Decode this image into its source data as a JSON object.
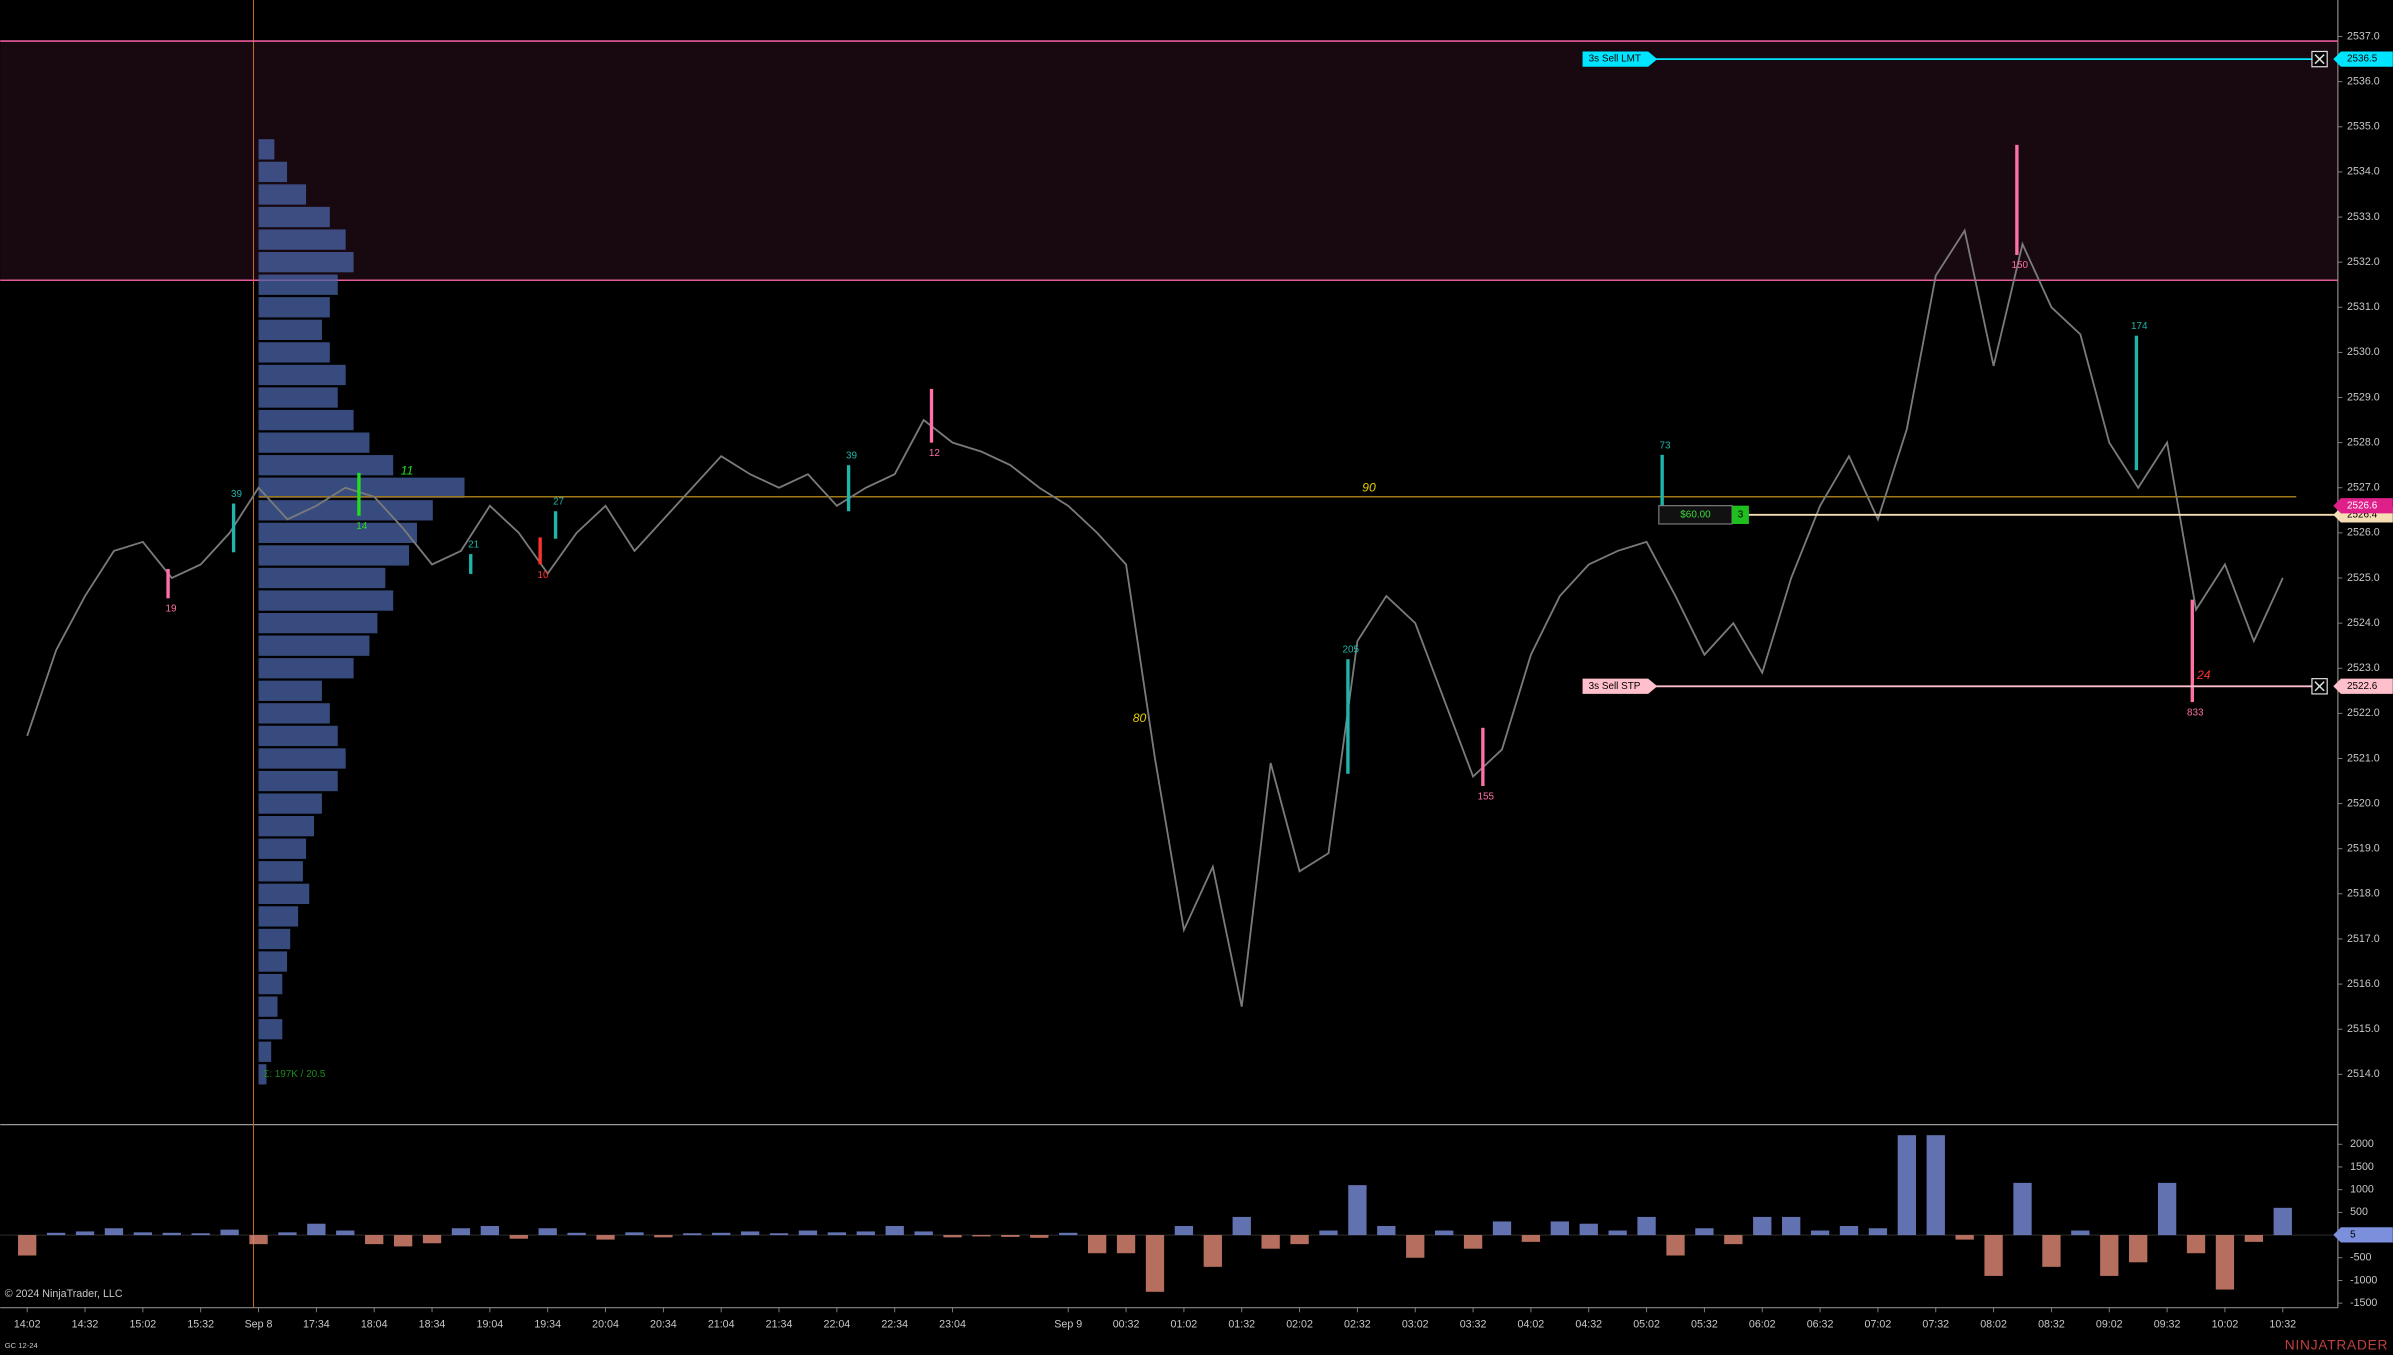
{
  "chart_data": [
    {
      "type": "line",
      "x": [
        0,
        15,
        30,
        45,
        60,
        75,
        90,
        105,
        120,
        135,
        150,
        165,
        180,
        195,
        210,
        225,
        240,
        255,
        270,
        285,
        300,
        315,
        330,
        345,
        360,
        375,
        390,
        405,
        420,
        435,
        450,
        465,
        480,
        495,
        510,
        525,
        540,
        555,
        570,
        585,
        600,
        615,
        630,
        645,
        660,
        675,
        690,
        705,
        720,
        735,
        750,
        765,
        780,
        795,
        810,
        825,
        840,
        855,
        870,
        885,
        900,
        915,
        930,
        945,
        960,
        975,
        990,
        1005,
        1020,
        1035,
        1050,
        1065,
        1080,
        1095,
        1110,
        1125,
        1140,
        1155,
        1170
      ],
      "values": [
        2521.5,
        2523.4,
        2524.6,
        2525.6,
        2525.8,
        2525.0,
        2525.3,
        2526.0,
        2527.0,
        2526.3,
        2526.6,
        2527.0,
        2526.8,
        2526.1,
        2525.3,
        2525.6,
        2526.6,
        2526.0,
        2525.1,
        2526.0,
        2526.6,
        2525.6,
        2526.3,
        2527.0,
        2527.7,
        2527.3,
        2527.0,
        2527.3,
        2526.6,
        2527.0,
        2527.3,
        2528.5,
        2528.0,
        2527.8,
        2527.5,
        2527.0,
        2526.6,
        2526.0,
        2525.3,
        2521.0,
        2517.2,
        2518.6,
        2515.5,
        2520.9,
        2518.5,
        2518.9,
        2523.6,
        2524.6,
        2524.0,
        2522.3,
        2520.6,
        2521.2,
        2523.3,
        2524.6,
        2525.3,
        2525.6,
        2525.8,
        2524.6,
        2523.3,
        2524.0,
        2522.9,
        2525.0,
        2526.6,
        2527.7,
        2526.3,
        2528.3,
        2531.7,
        2532.7,
        2529.7,
        2532.4,
        2531.0,
        2530.4,
        2528.0,
        2527.0,
        2528.0,
        2524.3,
        2525.3,
        2523.6,
        2525.0
      ],
      "color": "#7a7a7a",
      "xlim": [
        -14,
        1197
      ],
      "xticks": [
        {
          "value": 0,
          "label": "14:02"
        },
        {
          "value": 30,
          "label": "14:32"
        },
        {
          "value": 60,
          "label": "15:02"
        },
        {
          "value": 90,
          "label": "15:32"
        },
        {
          "value": 120,
          "label": "Sep 8"
        },
        {
          "value": 150,
          "label": "17:34"
        },
        {
          "value": 180,
          "label": "18:04"
        },
        {
          "value": 210,
          "label": "18:34"
        },
        {
          "value": 240,
          "label": "19:04"
        },
        {
          "value": 270,
          "label": "19:34"
        },
        {
          "value": 300,
          "label": "20:04"
        },
        {
          "value": 330,
          "label": "20:34"
        },
        {
          "value": 360,
          "label": "21:04"
        },
        {
          "value": 390,
          "label": "21:34"
        },
        {
          "value": 420,
          "label": "22:04"
        },
        {
          "value": 450,
          "label": "22:34"
        },
        {
          "value": 480,
          "label": "23:04"
        },
        {
          "value": 540,
          "label": "Sep 9"
        },
        {
          "value": 570,
          "label": "00:32"
        },
        {
          "value": 600,
          "label": "01:02"
        },
        {
          "value": 630,
          "label": "01:32"
        },
        {
          "value": 660,
          "label": "02:02"
        },
        {
          "value": 690,
          "label": "02:32"
        },
        {
          "value": 720,
          "label": "03:02"
        },
        {
          "value": 750,
          "label": "03:32"
        },
        {
          "value": 780,
          "label": "04:02"
        },
        {
          "value": 810,
          "label": "04:32"
        },
        {
          "value": 840,
          "label": "05:02"
        },
        {
          "value": 870,
          "label": "05:32"
        },
        {
          "value": 900,
          "label": "06:02"
        },
        {
          "value": 930,
          "label": "06:32"
        },
        {
          "value": 960,
          "label": "07:02"
        },
        {
          "value": 990,
          "label": "07:32"
        },
        {
          "value": 1020,
          "label": "08:02"
        },
        {
          "value": 1050,
          "label": "08:32"
        },
        {
          "value": 1080,
          "label": "09:02"
        },
        {
          "value": 1110,
          "label": "09:32"
        },
        {
          "value": 1140,
          "label": "10:02"
        },
        {
          "value": 1170,
          "label": "10:32"
        }
      ],
      "ylim": [
        2512.92,
        2537.81
      ],
      "yticks": [
        {
          "value": 2514,
          "label": "2514.0"
        },
        {
          "value": 2515,
          "label": "2515.0"
        },
        {
          "value": 2516,
          "label": "2516.0"
        },
        {
          "value": 2517,
          "label": "2517.0"
        },
        {
          "value": 2518,
          "label": "2518.0"
        },
        {
          "value": 2519,
          "label": "2519.0"
        },
        {
          "value": 2520,
          "label": "2520.0"
        },
        {
          "value": 2521,
          "label": "2521.0"
        },
        {
          "value": 2522,
          "label": "2522.0"
        },
        {
          "value": 2523,
          "label": "2523.0"
        },
        {
          "value": 2524,
          "label": "2524.0"
        },
        {
          "value": 2525,
          "label": "2525.0"
        },
        {
          "value": 2526,
          "label": "2526.0"
        },
        {
          "value": 2527,
          "label": "2527.0"
        },
        {
          "value": 2528,
          "label": "2528.0"
        },
        {
          "value": 2529,
          "label": "2529.0"
        },
        {
          "value": 2530,
          "label": "2530.0"
        },
        {
          "value": 2531,
          "label": "2531.0"
        },
        {
          "value": 2532,
          "label": "2532.0"
        },
        {
          "value": 2533,
          "label": "2533.0"
        },
        {
          "value": 2534,
          "label": "2534.0"
        },
        {
          "value": 2535,
          "label": "2535.0"
        },
        {
          "value": 2536,
          "label": "2536.0"
        },
        {
          "value": 2537,
          "label": "2537.0"
        }
      ],
      "zone": {
        "low": 2531.6,
        "high": 2536.9,
        "color": "#e75a9a"
      },
      "reference_line": {
        "x": [
          120,
          1177
        ],
        "values": [
          2526.8,
          2526.8
        ],
        "color": "#a07818"
      },
      "volume_profile": {
        "x": 120,
        "color": "#4a64a8",
        "summary": "Σ: 197K / 20.5",
        "prices": [
          2514,
          2514.5,
          2515,
          2515.5,
          2516,
          2516.5,
          2517,
          2517.5,
          2518,
          2518.5,
          2519,
          2519.5,
          2520,
          2520.5,
          2521,
          2521.5,
          2522,
          2522.5,
          2523,
          2523.5,
          2524,
          2524.5,
          2525,
          2525.5,
          2526,
          2526.5,
          2527,
          2527.5,
          2528,
          2528.5,
          2529,
          2529.5,
          2530,
          2530.5,
          2531,
          2531.5,
          2532,
          2532.5,
          2533,
          2533.5,
          2534,
          2534.5
        ],
        "values": [
          5,
          8,
          15,
          12,
          15,
          18,
          20,
          25,
          32,
          28,
          30,
          35,
          40,
          50,
          55,
          50,
          45,
          40,
          60,
          70,
          75,
          85,
          80,
          95,
          100,
          110,
          130,
          85,
          70,
          60,
          50,
          55,
          45,
          40,
          45,
          50,
          60,
          55,
          45,
          30,
          18,
          10
        ]
      },
      "signals": [
        {
          "x": 1032,
          "low": 2532.16,
          "high": 2534.6,
          "value": 150,
          "color": "#ff6fa8"
        },
        {
          "x": 1094,
          "low": 2527.39,
          "high": 2530.37,
          "value": 174,
          "color": "#1fb5a8"
        },
        {
          "x": 1123,
          "low": 2522.25,
          "high": 2524.52,
          "value": 833,
          "color": "#ff6fa8"
        },
        {
          "x": 755,
          "low": 2520.39,
          "high": 2521.68,
          "value": 155,
          "color": "#ff6fa8"
        },
        {
          "x": 685,
          "low": 2520.66,
          "high": 2523.2,
          "value": 205,
          "color": "#1fb5a8"
        },
        {
          "x": 848,
          "low": 2526.58,
          "high": 2527.73,
          "value": 73,
          "color": "#1fb5a8"
        },
        {
          "x": 469,
          "low": 2528.0,
          "high": 2529.19,
          "value": 12,
          "color": "#ff6fa8"
        },
        {
          "x": 426,
          "low": 2526.48,
          "high": 2527.5,
          "value": 39,
          "color": "#1fb5a8"
        },
        {
          "x": 73,
          "low": 2524.55,
          "high": 2525.2,
          "value": 19,
          "color": "#ff6fa8"
        },
        {
          "x": 107,
          "low": 2525.57,
          "high": 2526.65,
          "value": 39,
          "color": "#1fb5a8"
        },
        {
          "x": 274,
          "low": 2525.87,
          "high": 2526.48,
          "value": 27,
          "color": "#1fb5a8"
        },
        {
          "x": 230,
          "low": 2525.09,
          "high": 2525.53,
          "value": 21,
          "color": "#1fb5a8"
        },
        {
          "x": 266,
          "low": 2525.3,
          "high": 2525.9,
          "value": 10,
          "color": "#ff3030"
        },
        {
          "x": 172,
          "low": 2526.38,
          "high": 2527.33,
          "value": 14,
          "color": "#22dd22"
        }
      ],
      "annotations": [
        {
          "text": "90",
          "x": 696,
          "y": 2526.99,
          "color": "#e8d000"
        },
        {
          "text": "80",
          "x": 577,
          "y": 2521.88,
          "color": "#e8d000"
        },
        {
          "text": "24",
          "x": 1129,
          "y": 2522.83,
          "color": "#ff3030"
        },
        {
          "text": "11",
          "x": 197,
          "y": 2527.36,
          "color": "#22dd22"
        }
      ],
      "orders": [
        {
          "label": "3s  Sell LMT",
          "price": 2536.5,
          "color": "#00e5ff"
        },
        {
          "label": "3s  Sell STP",
          "price": 2522.6,
          "color": "#ffc0cb"
        }
      ],
      "position": {
        "price": 2526.4,
        "pnl": "$60.00",
        "quantity": 3,
        "color": "#f5deb3"
      },
      "last_price": {
        "price": 2526.6,
        "color": "#e0208a"
      }
    },
    {
      "type": "bar",
      "x": [
        0,
        15,
        30,
        45,
        60,
        75,
        90,
        105,
        120,
        135,
        150,
        165,
        180,
        195,
        210,
        225,
        240,
        255,
        270,
        285,
        300,
        315,
        330,
        345,
        360,
        375,
        390,
        405,
        420,
        435,
        450,
        465,
        480,
        495,
        510,
        525,
        540,
        555,
        570,
        585,
        600,
        615,
        630,
        645,
        660,
        675,
        690,
        705,
        720,
        735,
        750,
        765,
        780,
        795,
        810,
        825,
        840,
        855,
        870,
        885,
        900,
        915,
        930,
        945,
        960,
        975,
        990,
        1005,
        1020,
        1035,
        1050,
        1065,
        1080,
        1095,
        1110,
        1125,
        1140,
        1155,
        1170
      ],
      "values": [
        -450,
        50,
        80,
        150,
        60,
        50,
        40,
        120,
        -200,
        60,
        250,
        100,
        -200,
        -250,
        -180,
        150,
        200,
        -80,
        150,
        50,
        -100,
        60,
        -50,
        40,
        50,
        80,
        40,
        100,
        60,
        80,
        200,
        80,
        -50,
        -30,
        -40,
        -60,
        50,
        -400,
        -400,
        -1250,
        200,
        -700,
        400,
        -300,
        -200,
        100,
        1100,
        200,
        -500,
        100,
        -300,
        300,
        -150,
        300,
        250,
        100,
        400,
        -450,
        150,
        -200,
        400,
        400,
        100,
        200,
        150,
        2200,
        2200,
        -100,
        -900,
        1150,
        -700,
        100,
        -900,
        -600,
        1150,
        -400,
        -1200,
        -150,
        600
      ],
      "up_color": "#7b8fdc",
      "down_color": "#e38a77",
      "xlim": [
        -14,
        1197
      ],
      "ylim": [
        -1600,
        2400
      ],
      "yticks": [
        2000,
        1500,
        1000,
        500,
        -500,
        -1000,
        -1500
      ],
      "last_value": 5
    }
  ],
  "copyright": "© 2024 NinjaTrader, LLC",
  "instrument": "GC 12-24",
  "brand": "NINJATRADER"
}
